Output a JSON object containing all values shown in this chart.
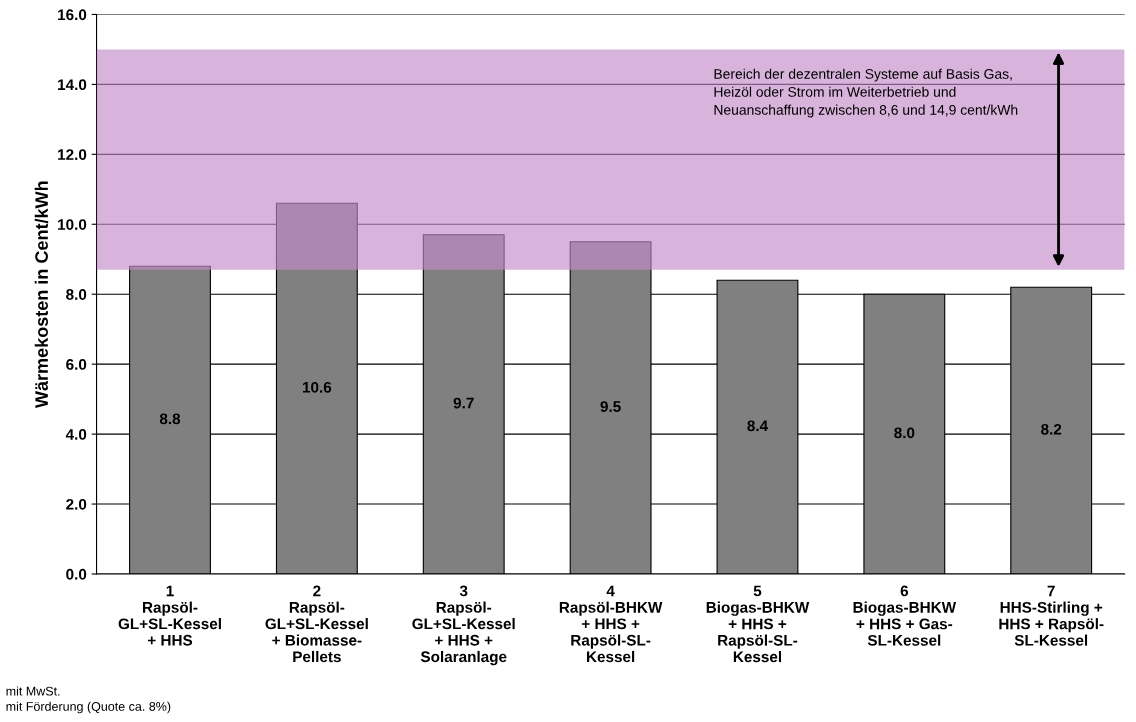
{
  "chart_data": {
    "type": "bar",
    "ylabel": "Wärmekosten in Cent/kWh",
    "categories": [
      "1\nRapsöl-\nGL+SL-Kessel\n+ HHS",
      "2\nRapsöl-\nGL+SL-Kessel\n+ Biomasse-\nPellets",
      "3\nRapsöl-\nGL+SL-Kessel\n+ HHS +\nSolaranlage",
      "4\nRapsöl-BHKW\n+ HHS +\nRapsöl-SL-\nKessel",
      "5\nBiogas-BHKW\n+ HHS +\nRapsöl-SL-\nKessel",
      "6\nBiogas-BHKW\n+ HHS + Gas-\nSL-Kessel",
      "7\nHHS-Stirling +\nHHS + Rapsöl-\nSL-Kessel"
    ],
    "values": [
      8.8,
      10.6,
      9.7,
      9.5,
      8.4,
      8.0,
      8.2
    ],
    "value_labels": [
      "8.8",
      "10.6",
      "9.7",
      "9.5",
      "8.4",
      "8.0",
      "8.2"
    ],
    "color": "#808080",
    "ylim": [
      0,
      16
    ],
    "yticks": [
      {
        "value": 0,
        "label": "0.0"
      },
      {
        "value": 2,
        "label": "2.0"
      },
      {
        "value": 4,
        "label": "4.0"
      },
      {
        "value": 6,
        "label": "6.0"
      },
      {
        "value": 8,
        "label": "8.0"
      },
      {
        "value": 10,
        "label": "10.0"
      },
      {
        "value": 12,
        "label": "12.0"
      },
      {
        "value": 14,
        "label": "14.0"
      },
      {
        "value": 16,
        "label": "16.0"
      }
    ],
    "grid": "y",
    "bands": [
      {
        "axis": "y",
        "from": 8.7,
        "to": 15.0,
        "color": "#c38ac8",
        "label": "Bereich der dezentralen Systeme auf Basis Gas,\nHeizöl oder Strom im Weiterbetrieb und\nNeuanschaffung zwischen 8,6 und 14,9 cent/kWh"
      }
    ],
    "annotations": [
      "mit MwSt.\nmit Förderung (Quote ca. 8%)"
    ]
  }
}
